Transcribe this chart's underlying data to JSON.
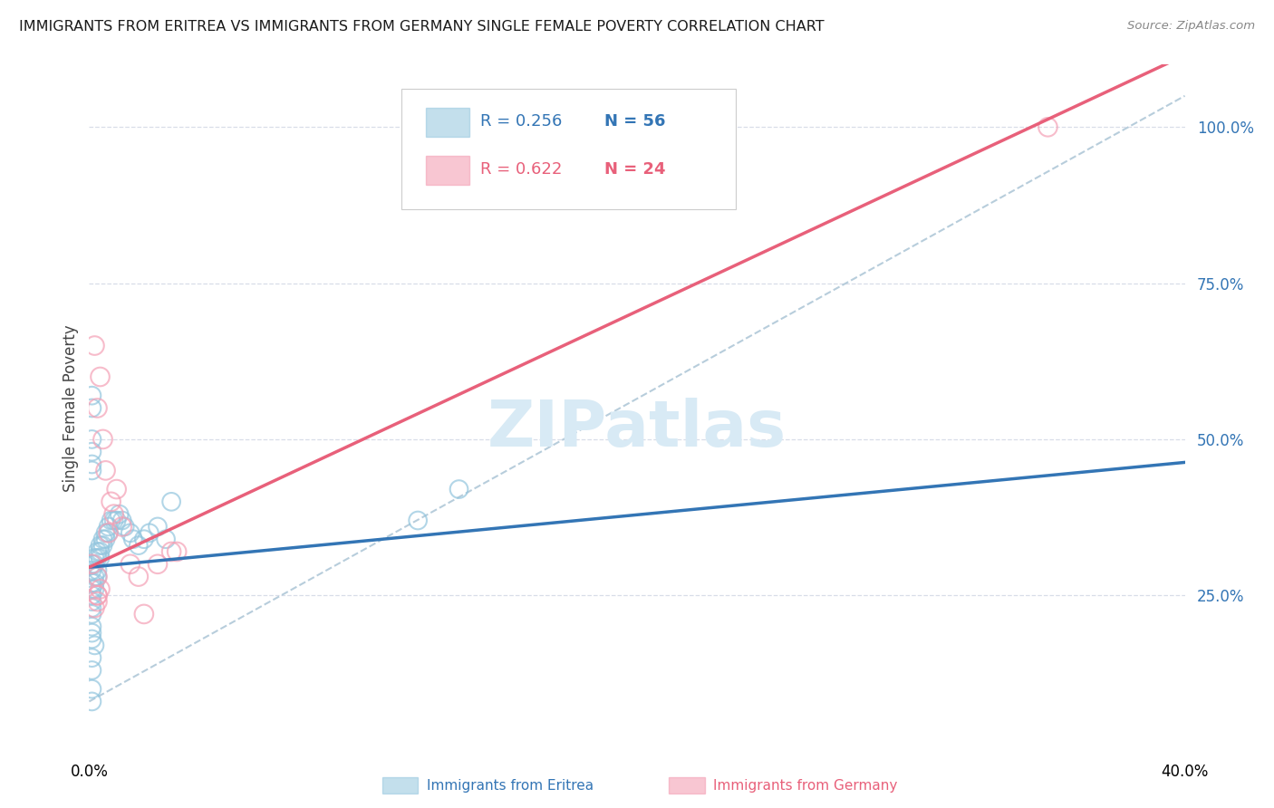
{
  "title": "IMMIGRANTS FROM ERITREA VS IMMIGRANTS FROM GERMANY SINGLE FEMALE POVERTY CORRELATION CHART",
  "source": "Source: ZipAtlas.com",
  "ylabel": "Single Female Poverty",
  "xlim": [
    0.0,
    0.4
  ],
  "ylim": [
    0.0,
    1.1
  ],
  "blue_color": "#92c5de",
  "pink_color": "#f4a0b5",
  "blue_line_color": "#3375b5",
  "pink_line_color": "#e8607a",
  "rn_color": "#3375b5",
  "pink_rn_color": "#e8607a",
  "grid_color": "#d8dde8",
  "background_color": "#ffffff",
  "watermark_color": "#d8eaf5",
  "eritrea_x": [
    0.001,
    0.001,
    0.001,
    0.001,
    0.001,
    0.001,
    0.001,
    0.001,
    0.001,
    0.001,
    0.001,
    0.002,
    0.002,
    0.002,
    0.002,
    0.002,
    0.002,
    0.003,
    0.003,
    0.003,
    0.003,
    0.004,
    0.004,
    0.004,
    0.005,
    0.005,
    0.006,
    0.006,
    0.007,
    0.007,
    0.008,
    0.009,
    0.01,
    0.011,
    0.012,
    0.013,
    0.015,
    0.016,
    0.018,
    0.02,
    0.022,
    0.025,
    0.028,
    0.03,
    0.001,
    0.001,
    0.001,
    0.001,
    0.001,
    0.001,
    0.12,
    0.135,
    0.001,
    0.001,
    0.001,
    0.001
  ],
  "eritrea_y": [
    0.3,
    0.29,
    0.27,
    0.26,
    0.25,
    0.24,
    0.23,
    0.22,
    0.2,
    0.19,
    0.18,
    0.31,
    0.3,
    0.28,
    0.27,
    0.26,
    0.17,
    0.32,
    0.31,
    0.29,
    0.28,
    0.33,
    0.32,
    0.31,
    0.34,
    0.33,
    0.35,
    0.34,
    0.36,
    0.35,
    0.37,
    0.37,
    0.37,
    0.38,
    0.37,
    0.36,
    0.35,
    0.34,
    0.33,
    0.34,
    0.35,
    0.36,
    0.34,
    0.4,
    0.55,
    0.57,
    0.5,
    0.48,
    0.46,
    0.45,
    0.37,
    0.42,
    0.15,
    0.13,
    0.1,
    0.08
  ],
  "germany_x": [
    0.001,
    0.002,
    0.003,
    0.003,
    0.003,
    0.004,
    0.004,
    0.005,
    0.006,
    0.007,
    0.008,
    0.009,
    0.01,
    0.012,
    0.015,
    0.018,
    0.02,
    0.025,
    0.03,
    0.032,
    0.002,
    0.003,
    0.35,
    0.003
  ],
  "germany_y": [
    0.3,
    0.23,
    0.28,
    0.25,
    0.24,
    0.26,
    0.6,
    0.5,
    0.45,
    0.35,
    0.4,
    0.38,
    0.42,
    0.36,
    0.3,
    0.28,
    0.22,
    0.3,
    0.32,
    0.32,
    0.65,
    0.55,
    1.0,
    0.25
  ],
  "blue_intercept": 0.295,
  "blue_slope": 0.42,
  "pink_intercept": 0.295,
  "pink_slope": 2.05,
  "ref_line_x": [
    0.0,
    0.4
  ],
  "ref_line_y": [
    0.08,
    1.05
  ]
}
